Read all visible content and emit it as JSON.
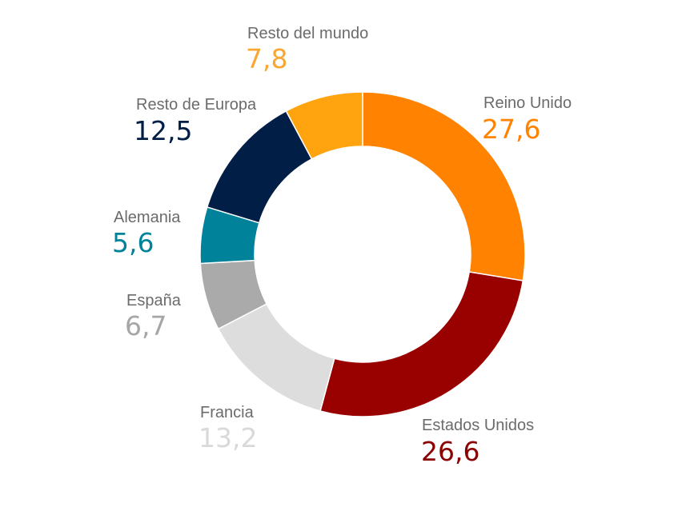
{
  "chart_data": {
    "type": "pie",
    "donut": true,
    "title": "",
    "decimal_separator": ",",
    "slices": [
      {
        "label": "Reino Unido",
        "value": 27.6,
        "display": "27,6",
        "color": "#ff8200",
        "value_color": "#ff8200"
      },
      {
        "label": "Estados Unidos",
        "value": 26.6,
        "display": "26,6",
        "color": "#990000",
        "value_color": "#8b0000"
      },
      {
        "label": "Francia",
        "value": 13.2,
        "display": "13,2",
        "color": "#dddddd",
        "value_color": "#d9d9d9"
      },
      {
        "label": "España",
        "value": 6.7,
        "display": "6,7",
        "color": "#aaaaaa",
        "value_color": "#a6a6a6"
      },
      {
        "label": "Alemania",
        "value": 5.6,
        "display": "5,6",
        "color": "#00829b",
        "value_color": "#00829b"
      },
      {
        "label": "Resto de Europa",
        "value": 12.5,
        "display": "12,5",
        "color": "#001e46",
        "value_color": "#001e46"
      },
      {
        "label": "Resto del mundo",
        "value": 7.8,
        "display": "7,8",
        "color": "#ffa30e",
        "value_color": "#f8a732"
      }
    ]
  }
}
